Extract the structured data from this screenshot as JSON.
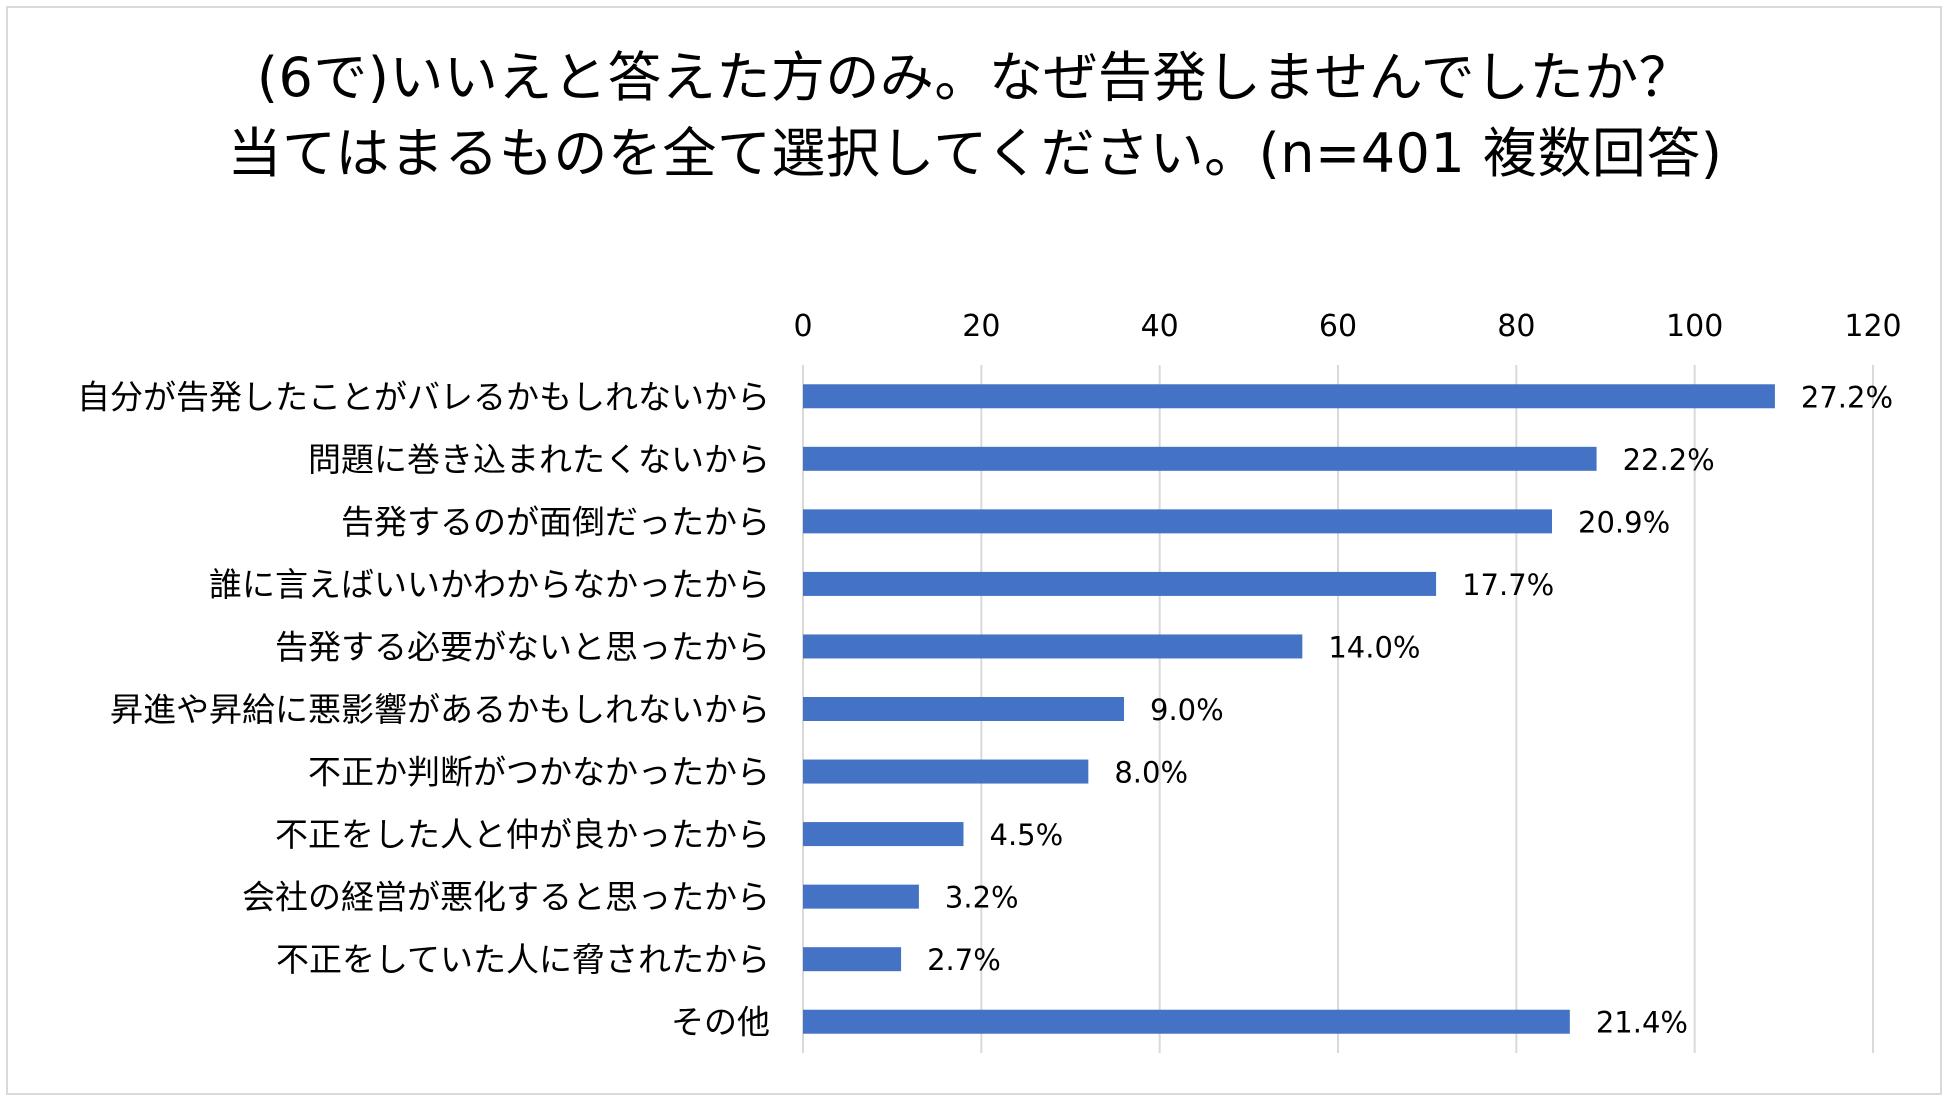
{
  "title_line1": "(6で)いいえと答えた方のみ。なぜ告発しませんでしたか？",
  "title_line2": "当てはまるものを全て選択してください。(n=401 複数回答)",
  "colors": {
    "bar": "#4472C4",
    "grid": "#d9d9d9",
    "border": "#d9d9d9"
  },
  "chart_data": {
    "type": "bar",
    "orientation": "horizontal",
    "title": "(6で)いいえと答えた方のみ。なぜ告発しませんでしたか？ 当てはまるものを全て選択してください。(n=401 複数回答)",
    "xlim": [
      0,
      120
    ],
    "x_ticks": [
      "0",
      "20",
      "40",
      "60",
      "80",
      "100",
      "120"
    ],
    "x_axis_position": "top",
    "grid": true,
    "legend": "none",
    "categories": [
      "自分が告発したことがバレるかもしれないから",
      "問題に巻き込まれたくないから",
      "告発するのが面倒だったから",
      "誰に言えばいいかわからなかったから",
      "告発する必要がないと思ったから",
      "昇進や昇給に悪影響があるかもしれないから",
      "不正か判断がつかなかったから",
      "不正をした人と仲が良かったから",
      "会社の経営が悪化すると思ったから",
      "不正をしていた人に脅されたから",
      "その他"
    ],
    "values": [
      109,
      89,
      84,
      71,
      56,
      36,
      32,
      18,
      13,
      11,
      86
    ],
    "data_labels": [
      "27.2%",
      "22.2%",
      "20.9%",
      "17.7%",
      "14.0%",
      "9.0%",
      "8.0%",
      "4.5%",
      "3.2%",
      "2.7%",
      "21.4%"
    ]
  }
}
